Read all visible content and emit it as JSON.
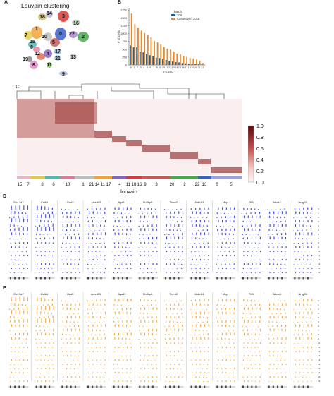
{
  "panels": {
    "a": {
      "letter": "A",
      "title": "Louvain clustering",
      "cluster_labels": [
        "18",
        "14",
        "3",
        "16",
        "7",
        "1",
        "10",
        "0",
        "2",
        "22",
        "15",
        "8",
        "12",
        "5",
        "19",
        "4",
        "17",
        "21",
        "13",
        "6",
        "11",
        "9"
      ]
    },
    "b": {
      "letter": "B"
    },
    "c": {
      "letter": "C",
      "colorbar_ticks": [
        "1.0",
        "0.8",
        "0.6",
        "0.4",
        "0.2",
        "0.0"
      ],
      "bottom_labels": [
        "15",
        "7",
        "8",
        "6",
        "10",
        "1",
        "21",
        "14",
        "11",
        "17",
        "4",
        "11",
        "18",
        "16",
        "9",
        "3",
        "20",
        "2",
        "22",
        "13",
        "0",
        "5"
      ],
      "xlabel": "louvain"
    },
    "d": {
      "letter": "D"
    },
    "e": {
      "letter": "E"
    }
  },
  "genes": [
    "Slc17a7",
    "Calb1",
    "Gad2",
    "Arhrd55",
    "Itga11",
    "Sh3bp4",
    "Trem2",
    "Aldh1l1",
    "Mbp",
    "Flt3",
    "Abca4",
    "Nrrg24"
  ],
  "track_colors": {
    "d": "#2b35c4",
    "e": "#e6a23c"
  },
  "chart_data": {
    "type": "bar",
    "title": "",
    "xlabel": "Cluster",
    "ylabel": "# of cells",
    "ylim": [
      0,
      1800
    ],
    "yticks": [
      0,
      250,
      500,
      750,
      1000,
      1250,
      1500,
      1750
    ],
    "legend_title": "batch",
    "legend_position": "top-right",
    "categories": [
      "0",
      "1",
      "2",
      "3",
      "4",
      "5",
      "6",
      "7",
      "8",
      "9",
      "10",
      "11",
      "12",
      "13",
      "14",
      "15",
      "16",
      "17",
      "18",
      "19",
      "20",
      "21",
      "22"
    ],
    "series": [
      {
        "name": "10X",
        "color": "#1f5f8b",
        "values": [
          620,
          560,
          560,
          430,
          400,
          350,
          310,
          280,
          230,
          220,
          200,
          160,
          130,
          110,
          90,
          80,
          60,
          50,
          40,
          30,
          25,
          20,
          10
        ]
      },
      {
        "name": "Cusanovich 2018",
        "color": "#e8892c",
        "values": [
          1640,
          1300,
          1180,
          1090,
          1020,
          960,
          880,
          760,
          720,
          650,
          570,
          520,
          490,
          420,
          360,
          340,
          280,
          260,
          220,
          200,
          170,
          130,
          60
        ]
      }
    ]
  }
}
